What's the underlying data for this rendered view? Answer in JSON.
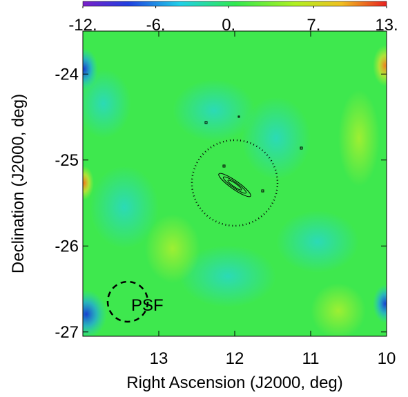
{
  "chart_data": {
    "type": "heatmap",
    "xlabel": "Right Ascension (J2000, deg)",
    "ylabel": "Declination (J2000, deg)",
    "xlim": [
      14.0,
      10.0
    ],
    "xticks": [
      13,
      12,
      11,
      10
    ],
    "ylim": [
      -27.05,
      -23.5
    ],
    "yticks": [
      -27,
      -26,
      -25,
      -24
    ],
    "colorbar": {
      "lim": [
        -12,
        13
      ],
      "ticks": [
        {
          "value": -12,
          "label": "-12."
        },
        {
          "value": -6,
          "label": "-6."
        },
        {
          "value": 0,
          "label": "0."
        },
        {
          "value": 7,
          "label": "7."
        },
        {
          "value": 13,
          "label": "13."
        }
      ]
    },
    "annotations": [
      "PSF"
    ]
  }
}
